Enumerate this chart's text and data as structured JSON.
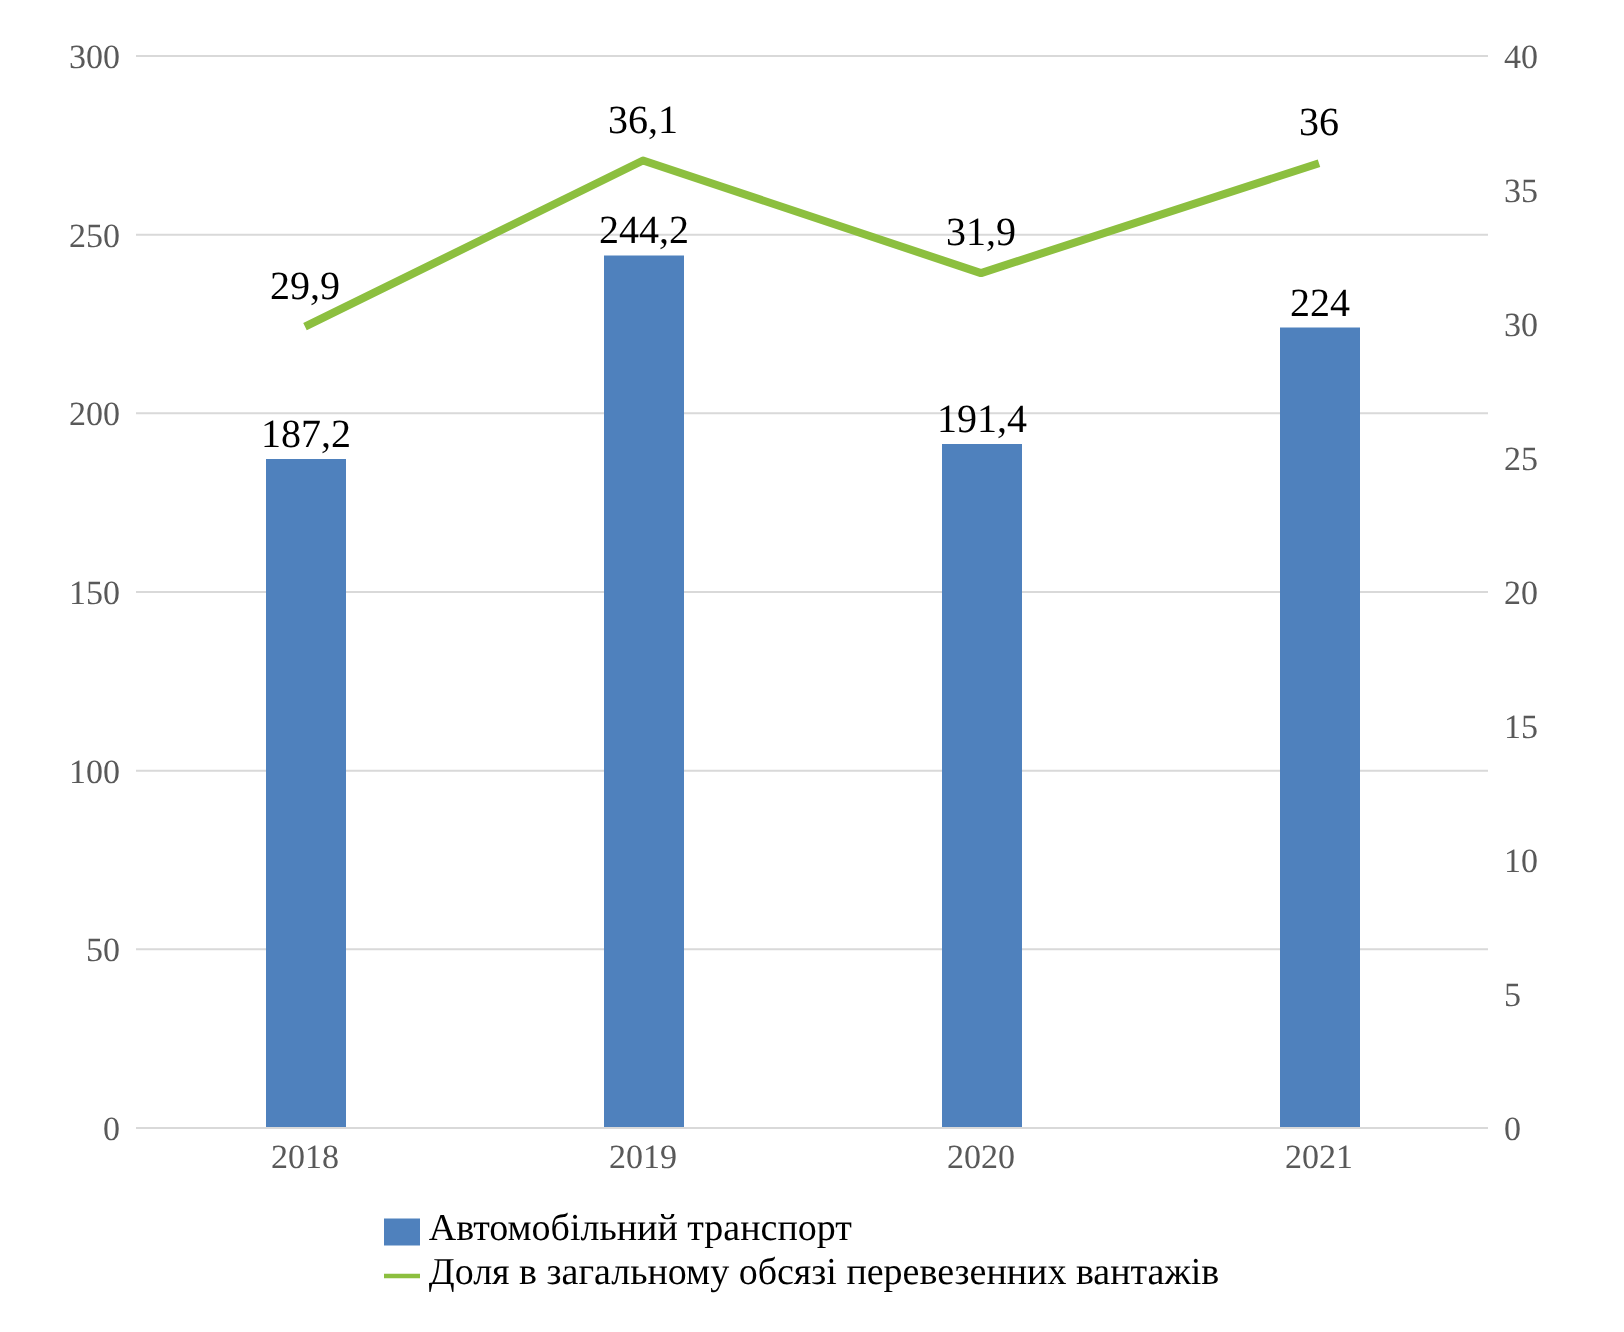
{
  "chart_data": {
    "type": "bar",
    "categories": [
      "2018",
      "2019",
      "2020",
      "2021"
    ],
    "series": [
      {
        "name": "Автомобільний транспорт",
        "color": "#4f81bd",
        "values": [
          187.2,
          244.2,
          191.4,
          224
        ],
        "value_labels": [
          "187,2",
          "244,2",
          "191,4",
          "224"
        ]
      },
      {
        "name": "Доля в загальному обсязі перевезенних вантажів",
        "type": "line",
        "axis": "y2",
        "color": "#8cbf3f",
        "values": [
          29.9,
          36.1,
          31.9,
          36
        ],
        "value_labels": [
          "29,9",
          "36,1",
          "31,9",
          "36"
        ]
      }
    ],
    "ylim": [
      0,
      300
    ],
    "yticks": [
      0,
      50,
      100,
      150,
      200,
      250,
      300
    ],
    "y2lim": [
      0,
      40
    ],
    "y2ticks": [
      0,
      5,
      10,
      15,
      20,
      25,
      30,
      35,
      40
    ],
    "grid": "y",
    "legend": "bottom",
    "marker": "none"
  }
}
